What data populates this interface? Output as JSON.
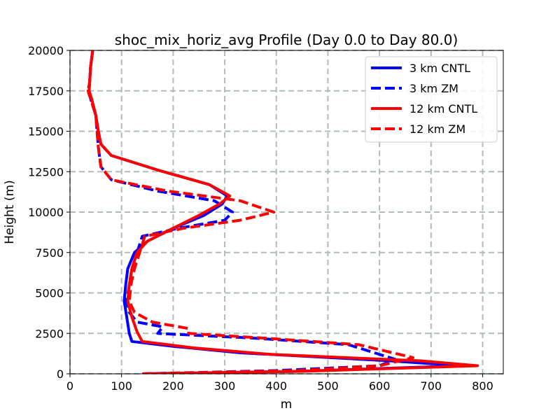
{
  "chart_data": {
    "type": "line",
    "title": "shoc_mix_horiz_avg Profile (Day 0.0 to Day 80.0)",
    "xlabel": "m",
    "ylabel": "Height (m)",
    "xlim": [
      0,
      840
    ],
    "ylim": [
      0,
      20000
    ],
    "xticks": [
      0,
      100,
      200,
      300,
      400,
      500,
      600,
      700,
      800
    ],
    "yticks": [
      0,
      2500,
      5000,
      7500,
      10000,
      12500,
      15000,
      17500,
      20000
    ],
    "grid": true,
    "legend_position": "top-right",
    "series": [
      {
        "name": "3 km CNTL",
        "color": "#0000ff",
        "style": "solid",
        "points": [
          [
            140,
            0
          ],
          [
            440,
            150
          ],
          [
            760,
            500
          ],
          [
            620,
            800
          ],
          [
            330,
            1300
          ],
          [
            200,
            1700
          ],
          [
            120,
            2000
          ],
          [
            115,
            2500
          ],
          [
            110,
            3500
          ],
          [
            105,
            4500
          ],
          [
            108,
            5500
          ],
          [
            112,
            6500
          ],
          [
            125,
            7500
          ],
          [
            150,
            8200
          ],
          [
            200,
            9000
          ],
          [
            260,
            9800
          ],
          [
            295,
            10500
          ],
          [
            305,
            11000
          ],
          [
            270,
            11700
          ],
          [
            170,
            12600
          ],
          [
            80,
            13500
          ],
          [
            60,
            14200
          ],
          [
            55,
            15000
          ],
          [
            50,
            16000
          ],
          [
            42,
            17000
          ],
          [
            37,
            17500
          ],
          [
            38,
            18000
          ],
          [
            40,
            19000
          ],
          [
            44,
            20000
          ]
        ]
      },
      {
        "name": "3 km ZM",
        "color": "#0000ff",
        "style": "dashed",
        "points": [
          [
            140,
            0
          ],
          [
            400,
            200
          ],
          [
            600,
            500
          ],
          [
            630,
            900
          ],
          [
            540,
            1800
          ],
          [
            360,
            2200
          ],
          [
            170,
            2500
          ],
          [
            180,
            2900
          ],
          [
            130,
            3200
          ],
          [
            115,
            3800
          ],
          [
            110,
            4500
          ],
          [
            115,
            5500
          ],
          [
            120,
            6500
          ],
          [
            130,
            7500
          ],
          [
            140,
            8500
          ],
          [
            210,
            9000
          ],
          [
            300,
            9500
          ],
          [
            315,
            10000
          ],
          [
            280,
            10700
          ],
          [
            170,
            11300
          ],
          [
            80,
            12000
          ],
          [
            60,
            12800
          ],
          [
            55,
            14000
          ],
          [
            50,
            16000
          ],
          [
            40,
            17000
          ],
          [
            35,
            17500
          ],
          [
            38,
            18000
          ],
          [
            40,
            19000
          ],
          [
            44,
            20000
          ]
        ]
      },
      {
        "name": "12 km CNTL",
        "color": "#ff0000",
        "style": "solid",
        "points": [
          [
            140,
            0
          ],
          [
            450,
            150
          ],
          [
            790,
            500
          ],
          [
            680,
            800
          ],
          [
            390,
            1200
          ],
          [
            240,
            1600
          ],
          [
            140,
            2000
          ],
          [
            130,
            2600
          ],
          [
            120,
            3500
          ],
          [
            112,
            4500
          ],
          [
            115,
            5500
          ],
          [
            120,
            6500
          ],
          [
            130,
            7500
          ],
          [
            150,
            8200
          ],
          [
            200,
            9000
          ],
          [
            250,
            9800
          ],
          [
            290,
            10500
          ],
          [
            310,
            11000
          ],
          [
            270,
            11700
          ],
          [
            170,
            12600
          ],
          [
            80,
            13500
          ],
          [
            60,
            14200
          ],
          [
            55,
            15000
          ],
          [
            50,
            16000
          ],
          [
            42,
            17000
          ],
          [
            37,
            17500
          ],
          [
            38,
            18000
          ],
          [
            40,
            19000
          ],
          [
            44,
            20000
          ]
        ]
      },
      {
        "name": "12 km ZM",
        "color": "#ff0000",
        "style": "dashed",
        "points": [
          [
            140,
            0
          ],
          [
            440,
            200
          ],
          [
            600,
            500
          ],
          [
            665,
            1000
          ],
          [
            560,
            1800
          ],
          [
            380,
            2200
          ],
          [
            230,
            2500
          ],
          [
            230,
            2800
          ],
          [
            160,
            3200
          ],
          [
            125,
            3800
          ],
          [
            115,
            4500
          ],
          [
            118,
            5500
          ],
          [
            125,
            6500
          ],
          [
            135,
            7500
          ],
          [
            145,
            8500
          ],
          [
            220,
            9000
          ],
          [
            330,
            9500
          ],
          [
            395,
            10000
          ],
          [
            330,
            10700
          ],
          [
            190,
            11300
          ],
          [
            80,
            12000
          ],
          [
            60,
            12800
          ],
          [
            55,
            14000
          ],
          [
            50,
            16000
          ],
          [
            40,
            17000
          ],
          [
            35,
            17500
          ],
          [
            38,
            18000
          ],
          [
            40,
            19000
          ],
          [
            44,
            20000
          ]
        ]
      }
    ]
  }
}
